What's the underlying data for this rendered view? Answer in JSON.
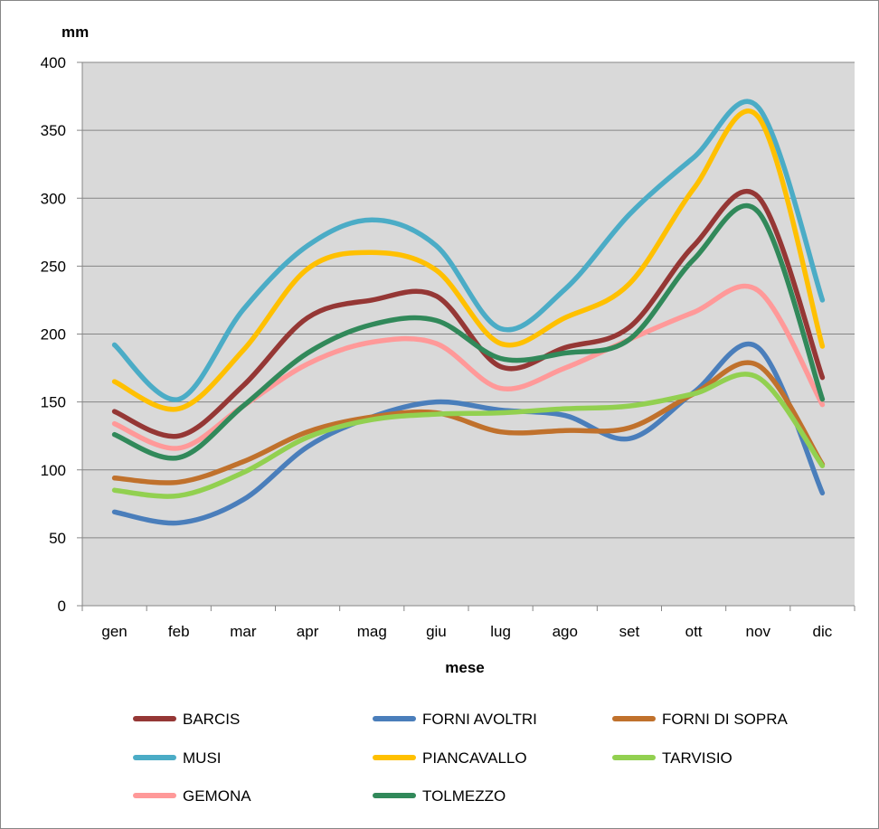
{
  "chart_data": {
    "type": "line",
    "xlabel": "mese",
    "ylabel": "mm",
    "ylim": [
      0,
      400
    ],
    "yticks": [
      0,
      50,
      100,
      150,
      200,
      250,
      300,
      350,
      400
    ],
    "grid": true,
    "legend_position": "bottom",
    "categories": [
      "gen",
      "feb",
      "mar",
      "apr",
      "mag",
      "giu",
      "lug",
      "ago",
      "set",
      "ott",
      "nov",
      "dic"
    ],
    "series": [
      {
        "name": "BARCIS",
        "color": "#953735",
        "values": [
          143,
          125,
          162,
          212,
          225,
          228,
          176,
          190,
          205,
          265,
          301,
          168
        ]
      },
      {
        "name": "FORNI  AVOLTRI",
        "color": "#4a7ebb",
        "values": [
          69,
          61,
          78,
          117,
          139,
          150,
          144,
          140,
          123,
          157,
          190,
          83
        ]
      },
      {
        "name": "FORNI DI SOPRA",
        "color": "#c0712c",
        "values": [
          94,
          91,
          106,
          128,
          139,
          142,
          128,
          129,
          131,
          156,
          177,
          104
        ]
      },
      {
        "name": "MUSI",
        "color": "#4bacc6",
        "values": [
          192,
          152,
          218,
          265,
          284,
          265,
          204,
          233,
          288,
          330,
          367,
          225
        ]
      },
      {
        "name": "PIANCAVALLO",
        "color": "#ffc000",
        "values": [
          165,
          145,
          188,
          248,
          260,
          247,
          193,
          212,
          237,
          307,
          360,
          191
        ]
      },
      {
        "name": "TARVISIO",
        "color": "#92d050",
        "values": [
          85,
          81,
          98,
          124,
          137,
          141,
          142,
          145,
          147,
          156,
          168,
          103
        ]
      },
      {
        "name": "GEMONA",
        "color": "#ff9999",
        "values": [
          134,
          116,
          147,
          178,
          194,
          193,
          160,
          175,
          196,
          216,
          232,
          148
        ]
      },
      {
        "name": "TOLMEZZO",
        "color": "#31895a",
        "values": [
          126,
          109,
          147,
          186,
          207,
          210,
          182,
          186,
          196,
          255,
          290,
          152
        ]
      }
    ]
  }
}
